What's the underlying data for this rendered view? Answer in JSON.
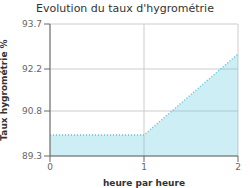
{
  "chart_data": {
    "type": "area",
    "title": "Evolution du taux d'hygrométrie",
    "xlabel": "heure par heure",
    "ylabel": "Taux hygrométrie %",
    "x": [
      0,
      1,
      2
    ],
    "values": [
      90.0,
      90.0,
      92.7
    ],
    "xlim": [
      0,
      2
    ],
    "ylim": [
      89.3,
      93.7
    ],
    "xticks": [
      0,
      1,
      2
    ],
    "yticks": [
      89.3,
      90.8,
      92.2,
      93.7
    ],
    "color": "#5bc8dc",
    "line_style": "dotted",
    "grid": true
  }
}
